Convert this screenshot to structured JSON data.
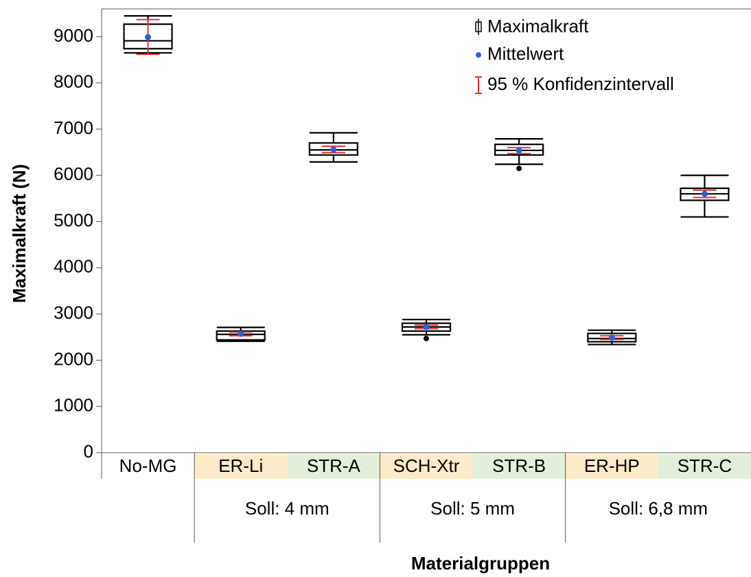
{
  "chart_data": {
    "type": "box",
    "y_label": "Maximalkraft (N)",
    "x_label": "Materialgruppen",
    "categories": [
      "No-MG",
      "ER-Li",
      "STR-A",
      "SCH-Xtr",
      "STR-B",
      "ER-HP",
      "STR-C"
    ],
    "category_colors": [
      "#ffffff",
      "#fdebc8",
      "#e2efda",
      "#fdebc8",
      "#e2efda",
      "#fdebc8",
      "#e2efda"
    ],
    "groups": [
      "Soll: 4 mm",
      "Soll: 5 mm",
      "Soll: 6,8 mm"
    ],
    "ylim": [
      0,
      9600
    ],
    "yticks": [
      0,
      1000,
      2000,
      3000,
      4000,
      5000,
      6000,
      7000,
      8000,
      9000
    ],
    "legend": [
      "Maximalkraft",
      "Mittelwert",
      "95 % Konfidenzintervall"
    ],
    "box_color": "#000000",
    "mean_color": "#3060d0",
    "ci_color": "#e0303c",
    "boxes": [
      {
        "whisker_low": 8650,
        "q1": 8740,
        "median": 8910,
        "q3": 9270,
        "whisker_high": 9450,
        "mean": 8990,
        "ci_low": 8620,
        "ci_high": 9370,
        "outliers": []
      },
      {
        "whisker_low": 2410,
        "q1": 2440,
        "median": 2560,
        "q3": 2630,
        "whisker_high": 2710,
        "mean": 2570,
        "ci_low": 2530,
        "ci_high": 2610,
        "outliers": []
      },
      {
        "whisker_low": 6290,
        "q1": 6440,
        "median": 6550,
        "q3": 6700,
        "whisker_high": 6920,
        "mean": 6560,
        "ci_low": 6490,
        "ci_high": 6630,
        "outliers": []
      },
      {
        "whisker_low": 2550,
        "q1": 2630,
        "median": 2720,
        "q3": 2800,
        "whisker_high": 2880,
        "mean": 2720,
        "ci_low": 2680,
        "ci_high": 2760,
        "outliers": [
          2470
        ]
      },
      {
        "whisker_low": 6240,
        "q1": 6440,
        "median": 6540,
        "q3": 6670,
        "whisker_high": 6790,
        "mean": 6540,
        "ci_low": 6470,
        "ci_high": 6600,
        "outliers": [
          6150
        ]
      },
      {
        "whisker_low": 2340,
        "q1": 2400,
        "median": 2470,
        "q3": 2580,
        "whisker_high": 2650,
        "mean": 2490,
        "ci_low": 2450,
        "ci_high": 2530,
        "outliers": []
      },
      {
        "whisker_low": 5100,
        "q1": 5460,
        "median": 5600,
        "q3": 5720,
        "whisker_high": 6000,
        "mean": 5600,
        "ci_low": 5520,
        "ci_high": 5680,
        "outliers": []
      }
    ]
  }
}
